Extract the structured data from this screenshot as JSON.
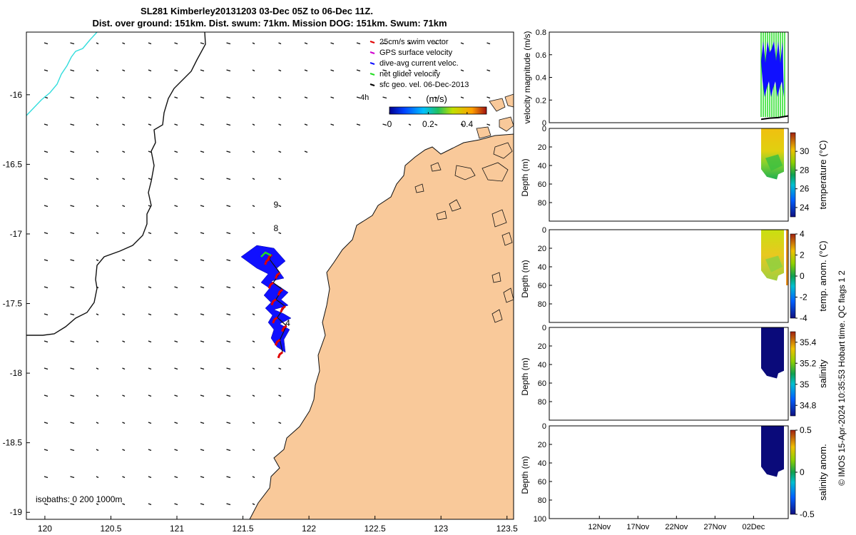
{
  "title_line1": "SL281 Kimberley20131203 03-Dec 05Z to 06-Dec 11Z.",
  "title_line2": "Dist. over ground: 151km. Dist. swum: 71km. Mission DOG: 151km. Swum: 71km",
  "footer_text": "© IMOS 15-Apr-2024 10:35:53 Hobart time. QC flags 1  2",
  "colors": {
    "land": "#f9c99a",
    "track_blue": "#1010ff",
    "swim_red": "#e00000",
    "glider_green": "#22dd22",
    "bathy_line": "#111111",
    "shelf_line": "#33dddd",
    "salinity_fill": "#0a0a7a"
  },
  "chart_data": [
    {
      "type": "map",
      "name": "glider track map",
      "xlim": [
        119.86,
        123.55
      ],
      "ylim": [
        -19.05,
        -15.55
      ],
      "x_ticks": [
        "120",
        "120.5",
        "121",
        "121.5",
        "122",
        "122.5",
        "123",
        "123.5"
      ],
      "x_tick_values": [
        120,
        120.5,
        121,
        121.5,
        122,
        122.5,
        123,
        123.5
      ],
      "y_ticks": [
        "-16",
        "-16.5",
        "-17",
        "-17.5",
        "-18",
        "-18.5",
        "-19"
      ],
      "y_tick_values": [
        -16,
        -16.5,
        -17,
        -17.5,
        -18,
        -18.5,
        -19
      ],
      "legend": [
        {
          "label": "25cm/s swim vector",
          "color": "#e00000"
        },
        {
          "label": "GPS surface velocity",
          "color": "#d000d0"
        },
        {
          "label": "dive-avg current veloc.",
          "color": "#1010ff"
        },
        {
          "label": "net glider velocity",
          "color": "#22dd22"
        },
        {
          "label": "sfc geo. vel. 06-Dec-2013",
          "color": "#000000"
        }
      ],
      "hour_label": "4h",
      "colorbar": {
        "label": "(m/s)",
        "ticks": [
          "0",
          "0.2",
          "0.4"
        ],
        "tick_values": [
          0,
          0.2,
          0.4
        ],
        "range": [
          0,
          0.5
        ]
      },
      "isobaths_label": "isobaths: 0   200  1000m",
      "day_markers": [
        {
          "label": "9",
          "lon": 121.75,
          "lat": -16.81
        },
        {
          "label": "8",
          "lon": 121.75,
          "lat": -16.98
        },
        {
          "label": "4",
          "lon": 121.84,
          "lat": -17.66
        }
      ],
      "track": [
        {
          "lon": 121.8,
          "lat": -17.85
        },
        {
          "lon": 121.78,
          "lat": -17.76
        },
        {
          "lon": 121.83,
          "lat": -17.66
        },
        {
          "lon": 121.76,
          "lat": -17.6
        },
        {
          "lon": 121.82,
          "lat": -17.52
        },
        {
          "lon": 121.75,
          "lat": -17.47
        },
        {
          "lon": 121.8,
          "lat": -17.4
        },
        {
          "lon": 121.73,
          "lat": -17.35
        },
        {
          "lon": 121.78,
          "lat": -17.28
        },
        {
          "lon": 121.7,
          "lat": -17.18
        },
        {
          "lon": 121.72,
          "lat": -17.15
        }
      ]
    },
    {
      "type": "line",
      "name": "velocity magnitude",
      "ylabel": "velocity magnitude (m/s)",
      "ylim": [
        0,
        0.8
      ],
      "y_ticks": [
        "0",
        "0.2",
        "0.4",
        "0.6",
        "0.8"
      ],
      "y_tick_values": [
        0,
        0.2,
        0.4,
        0.6,
        0.8
      ],
      "series": [
        {
          "name": "net glider velocity",
          "color": "#22dd22",
          "min": 0.05,
          "max": 0.8
        },
        {
          "name": "dive-avg current veloc.",
          "color": "#1010ff",
          "min": 0.2,
          "max": 0.72
        },
        {
          "name": "sfc geo. vel.",
          "color": "#000000",
          "min": 0.02,
          "max": 0.06
        }
      ]
    },
    {
      "type": "heatmap",
      "name": "temperature",
      "ylabel": "Depth (m)",
      "cblabel": "temperature (°C)",
      "ylim": [
        0,
        100
      ],
      "y_ticks": [
        "0",
        "20",
        "40",
        "60",
        "80"
      ],
      "y_tick_values": [
        0,
        20,
        40,
        60,
        80
      ],
      "cb_ticks": [
        "24",
        "26",
        "28",
        "30"
      ],
      "cb_tick_values": [
        24,
        26,
        28,
        30
      ],
      "cb_range": [
        23,
        32
      ],
      "max_depth": 55
    },
    {
      "type": "heatmap",
      "name": "temperature anomaly",
      "ylabel": "Depth (m)",
      "cblabel": "temp. anom. (°C)",
      "ylim": [
        0,
        100
      ],
      "y_ticks": [
        "0",
        "20",
        "40",
        "60",
        "80"
      ],
      "y_tick_values": [
        0,
        20,
        40,
        60,
        80
      ],
      "cb_ticks": [
        "-4",
        "-2",
        "0",
        "2",
        "4"
      ],
      "cb_tick_values": [
        -4,
        -2,
        0,
        2,
        4
      ],
      "cb_range": [
        -4,
        4
      ],
      "max_depth": 55
    },
    {
      "type": "heatmap",
      "name": "salinity",
      "ylabel": "Depth (m)",
      "cblabel": "salinity",
      "ylim": [
        0,
        100
      ],
      "y_ticks": [
        "0",
        "20",
        "40",
        "60",
        "80"
      ],
      "y_tick_values": [
        0,
        20,
        40,
        60,
        80
      ],
      "cb_ticks": [
        "34.8",
        "35",
        "35.2",
        "35.4"
      ],
      "cb_tick_values": [
        34.8,
        35,
        35.2,
        35.4
      ],
      "cb_range": [
        34.7,
        35.5
      ],
      "max_depth": 55
    },
    {
      "type": "heatmap",
      "name": "salinity anomaly",
      "ylabel": "Depth (m)",
      "cblabel": "salinity anom.",
      "ylim": [
        0,
        100
      ],
      "y_ticks": [
        "0",
        "20",
        "40",
        "60",
        "80",
        "100"
      ],
      "y_tick_values": [
        0,
        20,
        40,
        60,
        80,
        100
      ],
      "cb_ticks": [
        "-0.5",
        "0",
        "0.5"
      ],
      "cb_tick_values": [
        -0.5,
        0,
        0.5
      ],
      "cb_range": [
        -0.5,
        0.5
      ],
      "max_depth": 55,
      "x_ticks": [
        "12Nov",
        "17Nov",
        "22Nov",
        "27Nov",
        "02Dec"
      ],
      "x_tick_days": [
        12,
        17,
        22,
        27,
        32
      ],
      "xlim_days": [
        5.5,
        36.5
      ]
    }
  ]
}
